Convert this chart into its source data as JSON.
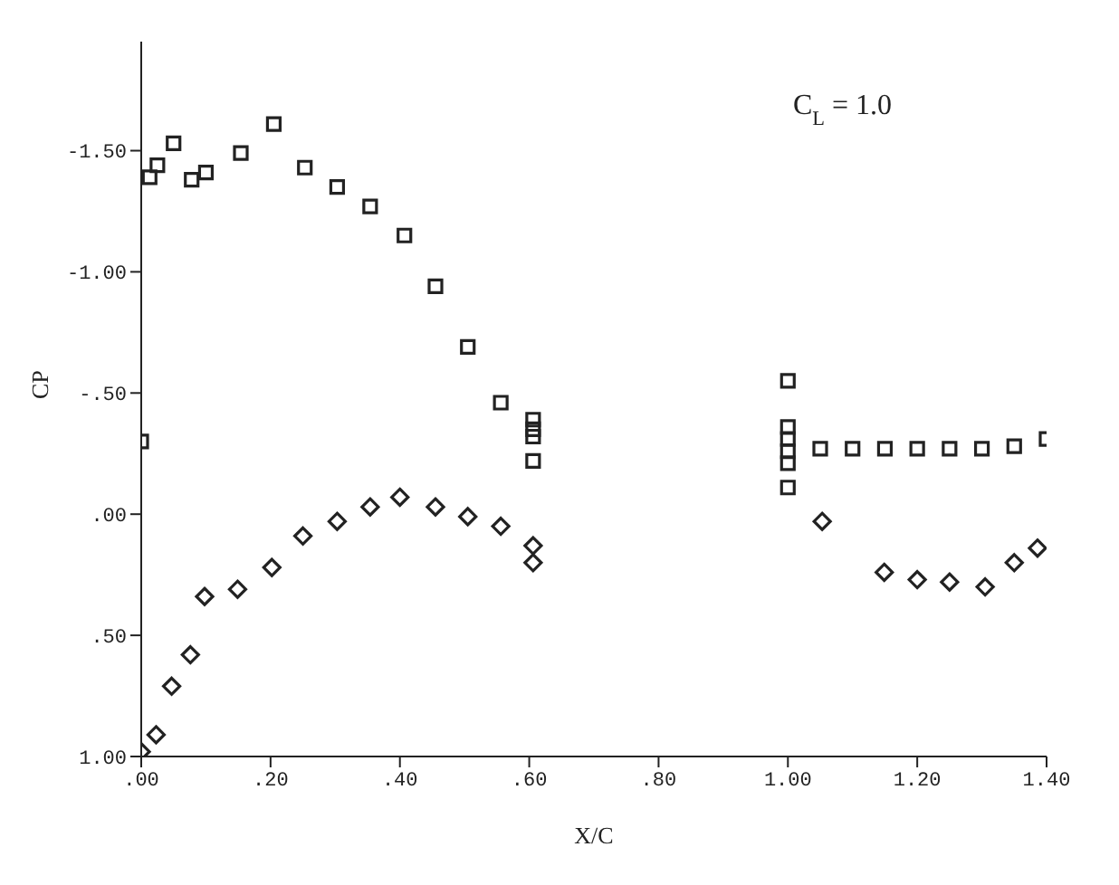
{
  "chart_data": {
    "type": "scatter",
    "xlabel": "X/C",
    "ylabel": "CP",
    "annotations": [
      "C$_{L}$ = 1.0"
    ],
    "xlim": [
      0,
      1.4
    ],
    "ylim": [
      1.0,
      -1.95
    ],
    "xticks": [
      {
        "value": 0,
        "label": ".00"
      },
      {
        "value": 0.2,
        "label": ".20"
      },
      {
        "value": 0.4,
        "label": ".40"
      },
      {
        "value": 0.6,
        "label": ".60"
      },
      {
        "value": 0.8,
        "label": ".80"
      },
      {
        "value": 1.0,
        "label": "1.00"
      },
      {
        "value": 1.2,
        "label": "1.20"
      },
      {
        "value": 1.4,
        "label": "1.40"
      }
    ],
    "yticks": [
      {
        "value": -1.5,
        "label": "-1.50"
      },
      {
        "value": -1.0,
        "label": "-1.00"
      },
      {
        "value": -0.5,
        "label": "-.50"
      },
      {
        "value": 0,
        "label": ".00"
      },
      {
        "value": 0.5,
        "label": ".50"
      },
      {
        "value": 1.0,
        "label": "1.00"
      }
    ],
    "grid": false,
    "legend": false,
    "series": [
      {
        "color": "#222222",
        "marker": "square",
        "x": [
          0,
          0.013,
          0.025,
          0.05,
          0.078,
          0.1,
          0.154,
          0.205,
          0.253,
          0.303,
          0.354,
          0.407,
          0.455,
          0.505,
          0.556,
          0.606,
          0.606,
          0.606,
          0.606,
          1.0,
          1.0,
          1.0,
          1.0,
          1.0,
          1.0,
          1.05,
          1.1,
          1.15,
          1.2,
          1.25,
          1.3,
          1.35,
          1.4
        ],
        "values": [
          -0.3,
          -1.39,
          -1.44,
          -1.53,
          -1.38,
          -1.41,
          -1.49,
          -1.61,
          -1.43,
          -1.35,
          -1.27,
          -1.15,
          -0.94,
          -0.69,
          -0.46,
          -0.39,
          -0.35,
          -0.32,
          -0.22,
          -0.55,
          -0.36,
          -0.31,
          -0.26,
          -0.21,
          -0.11,
          -0.27,
          -0.27,
          -0.27,
          -0.27,
          -0.27,
          -0.27,
          -0.28,
          -0.31
        ]
      },
      {
        "color": "#222222",
        "marker": "diamond",
        "x": [
          0,
          0.023,
          0.047,
          0.076,
          0.098,
          0.149,
          0.202,
          0.25,
          0.303,
          0.354,
          0.4,
          0.455,
          0.505,
          0.556,
          0.606,
          0.606,
          1.053,
          1.149,
          1.2,
          1.25,
          1.305,
          1.35,
          1.386
        ],
        "values": [
          0.98,
          0.91,
          0.71,
          0.58,
          0.34,
          0.31,
          0.22,
          0.09,
          0.03,
          -0.03,
          -0.07,
          -0.03,
          0.01,
          0.05,
          0.13,
          0.2,
          0.03,
          0.24,
          0.27,
          0.28,
          0.3,
          0.2,
          0.14
        ]
      }
    ]
  }
}
